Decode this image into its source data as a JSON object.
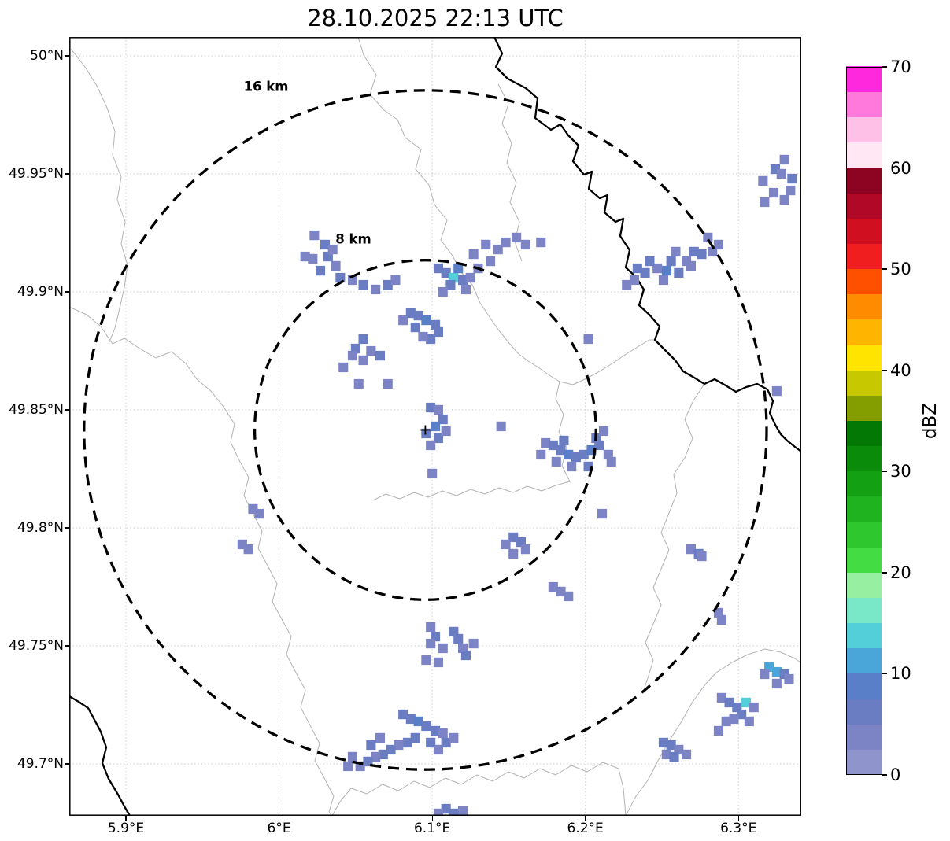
{
  "title": "28.10.2025 22:13 UTC",
  "axes": {
    "x_ticks": [
      {
        "value": 5.9,
        "label": "5.9°E"
      },
      {
        "value": 6.0,
        "label": "6°E"
      },
      {
        "value": 6.1,
        "label": "6.1°E"
      },
      {
        "value": 6.2,
        "label": "6.2°E"
      },
      {
        "value": 6.3,
        "label": "6.3°E"
      }
    ],
    "y_ticks": [
      {
        "value": 50.0,
        "label": "50°N"
      },
      {
        "value": 49.95,
        "label": "49.95°N"
      },
      {
        "value": 49.9,
        "label": "49.9°N"
      },
      {
        "value": 49.85,
        "label": "49.85°N"
      },
      {
        "value": 49.8,
        "label": "49.8°N"
      },
      {
        "value": 49.75,
        "label": "49.75°N"
      },
      {
        "value": 49.7,
        "label": "49.7°N"
      }
    ]
  },
  "colorbar": {
    "label": "dBZ",
    "min": 0,
    "max": 70,
    "tick_values": [
      0,
      10,
      20,
      30,
      40,
      50,
      60,
      70
    ],
    "step": 2.5,
    "colors": [
      "#9094cd",
      "#7d84c6",
      "#6a7dc3",
      "#587fc8",
      "#4aa6d8",
      "#52cfd8",
      "#79e8c8",
      "#97f0a2",
      "#43dc43",
      "#2ec82e",
      "#1fb41f",
      "#13a013",
      "#0a8c0a",
      "#047804",
      "#849e00",
      "#c8c800",
      "#ffe400",
      "#ffb400",
      "#ff8c00",
      "#ff5000",
      "#f01e1e",
      "#d01020",
      "#b00826",
      "#8c0422",
      "#ffe8f4",
      "#ffc0e8",
      "#ff78dc",
      "#ff28dc"
    ]
  },
  "chart_data": {
    "type": "heatmap",
    "title": "28.10.2025 22:13 UTC",
    "units": "dBZ",
    "lon_range": [
      5.863,
      6.341
    ],
    "lat_range": [
      49.678,
      50.008
    ],
    "radar_center": {
      "lon": 6.0955,
      "lat": 49.8415
    },
    "range_rings": [
      {
        "radius_km": 8,
        "label": "8 km"
      },
      {
        "radius_km": 16,
        "label": "16 km"
      }
    ],
    "cell_size_deg": {
      "dlon": 0.0062,
      "dlat": 0.0041
    },
    "echoes": [
      [
        6.316,
        49.947,
        4
      ],
      [
        6.324,
        49.952,
        6
      ],
      [
        6.33,
        49.956,
        4
      ],
      [
        6.323,
        49.942,
        4
      ],
      [
        6.317,
        49.938,
        4
      ],
      [
        6.33,
        49.939,
        4
      ],
      [
        6.335,
        49.948,
        6
      ],
      [
        6.334,
        49.943,
        4
      ],
      [
        6.328,
        49.95,
        4
      ],
      [
        6.28,
        49.923,
        4
      ],
      [
        6.287,
        49.92,
        4
      ],
      [
        6.271,
        49.917,
        6
      ],
      [
        6.256,
        49.913,
        6
      ],
      [
        6.247,
        49.91,
        4
      ],
      [
        6.239,
        49.908,
        6
      ],
      [
        6.232,
        49.905,
        4
      ],
      [
        6.251,
        49.905,
        4
      ],
      [
        6.261,
        49.908,
        6
      ],
      [
        6.269,
        49.911,
        4
      ],
      [
        6.276,
        49.916,
        6
      ],
      [
        6.227,
        49.903,
        4
      ],
      [
        6.242,
        49.913,
        6
      ],
      [
        6.259,
        49.917,
        4
      ],
      [
        6.234,
        49.91,
        6
      ],
      [
        6.253,
        49.909,
        8
      ],
      [
        6.266,
        49.913,
        4
      ],
      [
        6.283,
        49.917,
        4
      ],
      [
        6.023,
        49.924,
        4
      ],
      [
        6.03,
        49.92,
        6
      ],
      [
        6.032,
        49.915,
        6
      ],
      [
        6.037,
        49.911,
        4
      ],
      [
        6.022,
        49.914,
        4
      ],
      [
        6.04,
        49.906,
        6
      ],
      [
        6.048,
        49.905,
        4
      ],
      [
        6.055,
        49.903,
        6
      ],
      [
        6.063,
        49.901,
        4
      ],
      [
        6.071,
        49.903,
        6
      ],
      [
        6.076,
        49.905,
        4
      ],
      [
        6.017,
        49.915,
        4
      ],
      [
        6.027,
        49.909,
        6
      ],
      [
        6.035,
        49.918,
        4
      ],
      [
        6.104,
        49.91,
        6
      ],
      [
        6.109,
        49.908,
        6
      ],
      [
        6.114,
        49.906,
        13
      ],
      [
        6.12,
        49.905,
        6
      ],
      [
        6.125,
        49.906,
        4
      ],
      [
        6.13,
        49.91,
        4
      ],
      [
        6.112,
        49.903,
        6
      ],
      [
        6.122,
        49.901,
        4
      ],
      [
        6.107,
        49.9,
        4
      ],
      [
        6.117,
        49.91,
        8
      ],
      [
        6.127,
        49.916,
        4
      ],
      [
        6.135,
        49.92,
        4
      ],
      [
        6.143,
        49.918,
        4
      ],
      [
        6.148,
        49.921,
        4
      ],
      [
        6.155,
        49.923,
        4
      ],
      [
        6.161,
        49.92,
        4
      ],
      [
        6.171,
        49.921,
        4
      ],
      [
        6.138,
        49.913,
        4
      ],
      [
        6.086,
        49.891,
        6
      ],
      [
        6.091,
        49.89,
        6
      ],
      [
        6.096,
        49.888,
        8
      ],
      [
        6.102,
        49.886,
        6
      ],
      [
        6.104,
        49.883,
        6
      ],
      [
        6.099,
        49.88,
        6
      ],
      [
        6.094,
        49.881,
        4
      ],
      [
        6.089,
        49.885,
        6
      ],
      [
        6.081,
        49.888,
        4
      ],
      [
        6.055,
        49.88,
        6
      ],
      [
        6.05,
        49.876,
        6
      ],
      [
        6.06,
        49.875,
        4
      ],
      [
        6.066,
        49.873,
        6
      ],
      [
        6.055,
        49.871,
        4
      ],
      [
        6.048,
        49.873,
        4
      ],
      [
        6.042,
        49.868,
        4
      ],
      [
        6.071,
        49.861,
        4
      ],
      [
        6.052,
        49.861,
        4
      ],
      [
        6.099,
        49.851,
        6
      ],
      [
        6.104,
        49.85,
        4
      ],
      [
        6.107,
        49.846,
        6
      ],
      [
        6.102,
        49.843,
        8
      ],
      [
        6.096,
        49.84,
        6
      ],
      [
        6.104,
        49.838,
        6
      ],
      [
        6.109,
        49.841,
        4
      ],
      [
        6.099,
        49.835,
        4
      ],
      [
        6.145,
        49.843,
        4
      ],
      [
        6.1,
        49.823,
        4
      ],
      [
        6.202,
        49.88,
        4
      ],
      [
        6.325,
        49.858,
        4
      ],
      [
        6.174,
        49.836,
        4
      ],
      [
        6.179,
        49.835,
        6
      ],
      [
        6.184,
        49.833,
        6
      ],
      [
        6.189,
        49.831,
        8
      ],
      [
        6.194,
        49.83,
        6
      ],
      [
        6.199,
        49.831,
        6
      ],
      [
        6.204,
        49.833,
        8
      ],
      [
        6.209,
        49.835,
        6
      ],
      [
        6.215,
        49.831,
        4
      ],
      [
        6.202,
        49.826,
        6
      ],
      [
        6.191,
        49.826,
        4
      ],
      [
        6.181,
        49.828,
        4
      ],
      [
        6.171,
        49.831,
        4
      ],
      [
        6.207,
        49.838,
        6
      ],
      [
        6.212,
        49.841,
        4
      ],
      [
        6.217,
        49.828,
        4
      ],
      [
        6.186,
        49.837,
        6
      ],
      [
        6.211,
        49.806,
        4
      ],
      [
        5.983,
        49.808,
        4
      ],
      [
        5.987,
        49.806,
        4
      ],
      [
        5.976,
        49.793,
        4
      ],
      [
        5.98,
        49.791,
        4
      ],
      [
        6.153,
        49.796,
        6
      ],
      [
        6.158,
        49.794,
        6
      ],
      [
        6.161,
        49.791,
        4
      ],
      [
        6.153,
        49.789,
        4
      ],
      [
        6.148,
        49.793,
        4
      ],
      [
        6.179,
        49.775,
        4
      ],
      [
        6.184,
        49.773,
        4
      ],
      [
        6.189,
        49.771,
        4
      ],
      [
        6.269,
        49.791,
        4
      ],
      [
        6.274,
        49.789,
        6
      ],
      [
        6.276,
        49.788,
        4
      ],
      [
        6.287,
        49.764,
        4
      ],
      [
        6.289,
        49.761,
        4
      ],
      [
        6.099,
        49.758,
        4
      ],
      [
        6.102,
        49.754,
        6
      ],
      [
        6.099,
        49.751,
        4
      ],
      [
        6.107,
        49.749,
        4
      ],
      [
        6.114,
        49.756,
        6
      ],
      [
        6.117,
        49.753,
        6
      ],
      [
        6.12,
        49.749,
        4
      ],
      [
        6.122,
        49.746,
        6
      ],
      [
        6.127,
        49.751,
        4
      ],
      [
        6.096,
        49.744,
        4
      ],
      [
        6.104,
        49.743,
        4
      ],
      [
        6.081,
        49.721,
        6
      ],
      [
        6.086,
        49.719,
        6
      ],
      [
        6.091,
        49.718,
        8
      ],
      [
        6.096,
        49.716,
        6
      ],
      [
        6.102,
        49.714,
        6
      ],
      [
        6.107,
        49.713,
        4
      ],
      [
        6.089,
        49.711,
        6
      ],
      [
        6.084,
        49.709,
        6
      ],
      [
        6.078,
        49.708,
        4
      ],
      [
        6.073,
        49.706,
        6
      ],
      [
        6.068,
        49.704,
        6
      ],
      [
        6.063,
        49.703,
        4
      ],
      [
        6.058,
        49.701,
        6
      ],
      [
        6.053,
        49.699,
        4
      ],
      [
        6.06,
        49.708,
        6
      ],
      [
        6.066,
        49.711,
        4
      ],
      [
        6.099,
        49.709,
        6
      ],
      [
        6.104,
        49.706,
        4
      ],
      [
        6.109,
        49.709,
        6
      ],
      [
        6.114,
        49.711,
        4
      ],
      [
        6.048,
        49.703,
        4
      ],
      [
        6.045,
        49.699,
        4
      ],
      [
        6.289,
        49.728,
        4
      ],
      [
        6.294,
        49.726,
        6
      ],
      [
        6.299,
        49.724,
        6
      ],
      [
        6.305,
        49.726,
        13
      ],
      [
        6.31,
        49.724,
        4
      ],
      [
        6.302,
        49.721,
        6
      ],
      [
        6.297,
        49.719,
        4
      ],
      [
        6.292,
        49.718,
        4
      ],
      [
        6.307,
        49.718,
        4
      ],
      [
        6.287,
        49.714,
        4
      ],
      [
        6.32,
        49.741,
        11
      ],
      [
        6.325,
        49.739,
        11
      ],
      [
        6.33,
        49.738,
        6
      ],
      [
        6.333,
        49.736,
        4
      ],
      [
        6.325,
        49.734,
        4
      ],
      [
        6.317,
        49.738,
        4
      ],
      [
        6.251,
        49.709,
        6
      ],
      [
        6.256,
        49.708,
        6
      ],
      [
        6.261,
        49.706,
        4
      ],
      [
        6.266,
        49.704,
        4
      ],
      [
        6.253,
        49.704,
        4
      ],
      [
        6.258,
        49.703,
        6
      ],
      [
        6.109,
        49.681,
        6
      ],
      [
        6.114,
        49.679,
        6
      ],
      [
        6.12,
        49.68,
        4
      ],
      [
        6.104,
        49.679,
        4
      ]
    ]
  }
}
